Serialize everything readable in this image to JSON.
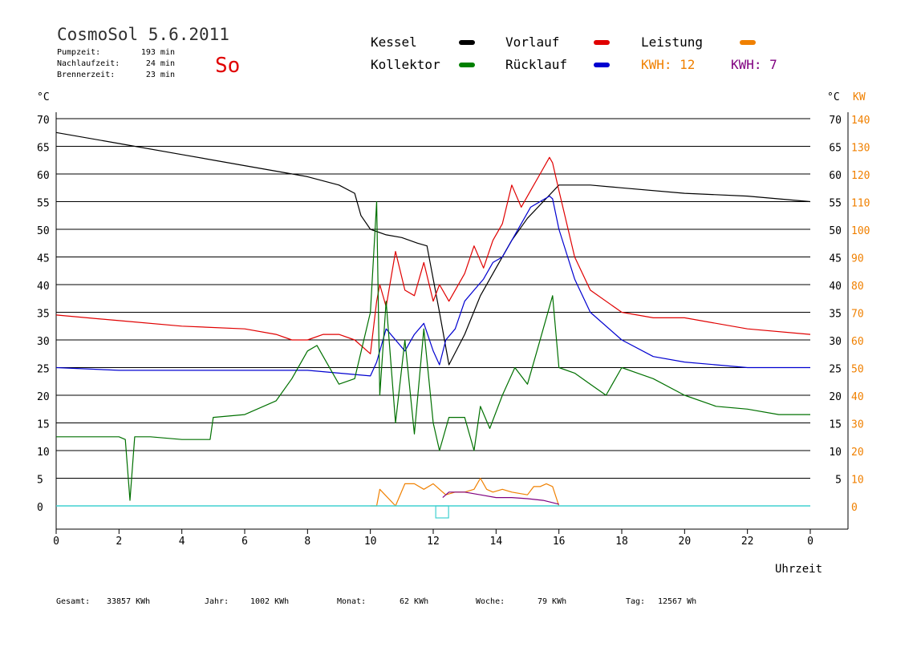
{
  "header": {
    "title": "CosmoSol 5.6.2011",
    "day": "So",
    "stats": [
      {
        "label": "Pumpzeit:",
        "value": "193 min"
      },
      {
        "label": "Nachlaufzeit:",
        "value": "24 min"
      },
      {
        "label": "Brennerzeit:",
        "value": "23 min"
      }
    ]
  },
  "legend": {
    "items": [
      {
        "label": "Kessel",
        "color": "#000000"
      },
      {
        "label": "Vorlauf",
        "color": "#e00000"
      },
      {
        "label": "Leistung",
        "color": "#f08000"
      },
      {
        "label": "Kollektor",
        "color": "#008000"
      },
      {
        "label": "Rücklauf",
        "color": "#0000d0"
      }
    ],
    "kwh": [
      {
        "label": "KWH: 12",
        "color": "#f08000"
      },
      {
        "label": "KWH: 7",
        "color": "#800080"
      }
    ]
  },
  "footer": [
    {
      "label": "Gesamt:",
      "value": "33857 KWh"
    },
    {
      "label": "Jahr:",
      "value": "1002 KWh"
    },
    {
      "label": "Monat:",
      "value": "62 KWh"
    },
    {
      "label": "Woche:",
      "value": "79 KWh"
    },
    {
      "label": "Tag:",
      "value": "12567 Wh"
    }
  ],
  "chart_data": {
    "type": "line",
    "xlabel": "Uhrzeit",
    "ylabel_left": "°C",
    "ylabel_right": [
      "°C",
      "KW"
    ],
    "xlim": [
      0,
      24
    ],
    "ylim": [
      0,
      70
    ],
    "x_ticks": [
      "0",
      "2",
      "4",
      "6",
      "8",
      "10",
      "12",
      "14",
      "16",
      "18",
      "20",
      "22",
      "0"
    ],
    "y_ticks_left": [
      0,
      5,
      10,
      15,
      20,
      25,
      30,
      35,
      40,
      45,
      50,
      55,
      60,
      65,
      70
    ],
    "y_ticks_right": [
      5,
      10,
      15,
      20,
      25,
      30,
      35,
      40,
      45,
      50,
      55,
      60,
      65,
      70
    ],
    "y_ticks_kw": [
      0,
      10,
      20,
      30,
      40,
      50,
      60,
      70,
      80,
      90,
      100,
      110,
      120,
      130,
      140
    ],
    "grid": "horizontal",
    "series": [
      {
        "name": "Kessel",
        "color": "#000000",
        "x": [
          0,
          2,
          4,
          6,
          7,
          8,
          9,
          9.5,
          9.7,
          10,
          10.5,
          11,
          11.5,
          11.8,
          12.2,
          12.5,
          13,
          13.5,
          14,
          14.5,
          15,
          15.5,
          16,
          17,
          18,
          20,
          22,
          24
        ],
        "y": [
          67.5,
          65.5,
          63.5,
          61.5,
          60.5,
          59.5,
          58,
          56.5,
          52.5,
          50,
          49,
          48.5,
          47.5,
          47,
          35,
          25.5,
          31,
          38,
          43,
          48,
          52,
          55,
          58,
          58,
          57.5,
          56.5,
          56,
          55
        ]
      },
      {
        "name": "Vorlauf",
        "color": "#e00000",
        "x": [
          0,
          2,
          4,
          6,
          7,
          7.5,
          8,
          8.5,
          9,
          9.5,
          10,
          10.2,
          10.3,
          10.5,
          10.8,
          11.1,
          11.4,
          11.7,
          12,
          12.2,
          12.5,
          13,
          13.3,
          13.6,
          13.9,
          14.2,
          14.5,
          14.8,
          15.1,
          15.4,
          15.7,
          15.8,
          16,
          16.5,
          17,
          18,
          19,
          20,
          22,
          24
        ],
        "y": [
          34.5,
          33.5,
          32.5,
          32,
          31,
          30,
          30,
          31,
          31,
          30,
          27.5,
          37,
          40,
          36,
          46,
          39,
          38,
          44,
          37,
          40,
          37,
          42,
          47,
          43,
          48,
          51,
          58,
          54,
          57,
          60,
          63,
          62,
          57,
          45,
          39,
          35,
          34,
          34,
          32,
          31
        ]
      },
      {
        "name": "Rücklauf",
        "color": "#0000d0",
        "x": [
          0,
          2,
          4,
          6,
          8,
          9,
          10,
          10.2,
          10.5,
          10.8,
          11.1,
          11.4,
          11.7,
          12,
          12.2,
          12.4,
          12.7,
          13,
          13.3,
          13.6,
          13.9,
          14.2,
          14.5,
          14.8,
          15.1,
          15.4,
          15.7,
          15.8,
          16,
          16.5,
          17,
          18,
          19,
          20,
          22,
          24
        ],
        "y": [
          25,
          24.5,
          24.5,
          24.5,
          24.5,
          24,
          23.5,
          26,
          32,
          30,
          28,
          31,
          33,
          28,
          25.5,
          30,
          32,
          37,
          39,
          41,
          44,
          45,
          48,
          51,
          54,
          55,
          56,
          55.5,
          50,
          41,
          35,
          30,
          27,
          26,
          25,
          25
        ]
      },
      {
        "name": "Kollektor",
        "color": "#007000",
        "x": [
          0,
          1,
          2,
          2.2,
          2.35,
          2.5,
          3,
          4,
          4.9,
          5,
          6,
          7,
          7.5,
          8,
          8.3,
          8.6,
          9,
          9.5,
          10,
          10.2,
          10.3,
          10.5,
          10.8,
          11.1,
          11.4,
          11.7,
          12,
          12.2,
          12.5,
          13,
          13.3,
          13.5,
          13.8,
          14.2,
          14.6,
          15,
          15.3,
          15.6,
          15.8,
          16,
          16.5,
          17,
          17.5,
          18,
          18.5,
          19,
          20,
          21,
          22,
          23,
          24
        ],
        "y": [
          12.5,
          12.5,
          12.5,
          12,
          1,
          12.5,
          12.5,
          12,
          12,
          16,
          16.5,
          19,
          23,
          28,
          29,
          26,
          22,
          23,
          35,
          55,
          20,
          37,
          15,
          30,
          13,
          32,
          15,
          10,
          16,
          16,
          10,
          18,
          14,
          20,
          25,
          22,
          28,
          34,
          38,
          25,
          24,
          22,
          20,
          25,
          24,
          23,
          20,
          18,
          17.5,
          16.5,
          16.5
        ]
      },
      {
        "name": "Leistung",
        "color": "#f08000",
        "x": [
          10,
          10.1,
          10.2,
          10.3,
          10.8,
          11.1,
          11.4,
          11.7,
          12,
          12.3,
          12.4,
          12.7,
          13,
          13.3,
          13.5,
          13.7,
          13.9,
          14.2,
          14.5,
          15,
          15.2,
          15.4,
          15.6,
          15.8,
          16
        ],
        "y": [
          0,
          0,
          0,
          3,
          0,
          4,
          4,
          3,
          4,
          2.5,
          2,
          2.5,
          2.5,
          3,
          5,
          3,
          2.5,
          3,
          2.5,
          2,
          3.5,
          3.5,
          4,
          3.5,
          0
        ]
      },
      {
        "name": "KWH 7",
        "color": "#800080",
        "x": [
          12.3,
          12.5,
          13,
          13.5,
          14,
          14.5,
          15,
          15.5,
          16
        ],
        "y": [
          1.5,
          2.5,
          2.5,
          2,
          1.5,
          1.5,
          1.3,
          1,
          0.3
        ]
      }
    ],
    "baseline": {
      "name": "Null",
      "color": "#40d0d0",
      "y": 0
    }
  }
}
